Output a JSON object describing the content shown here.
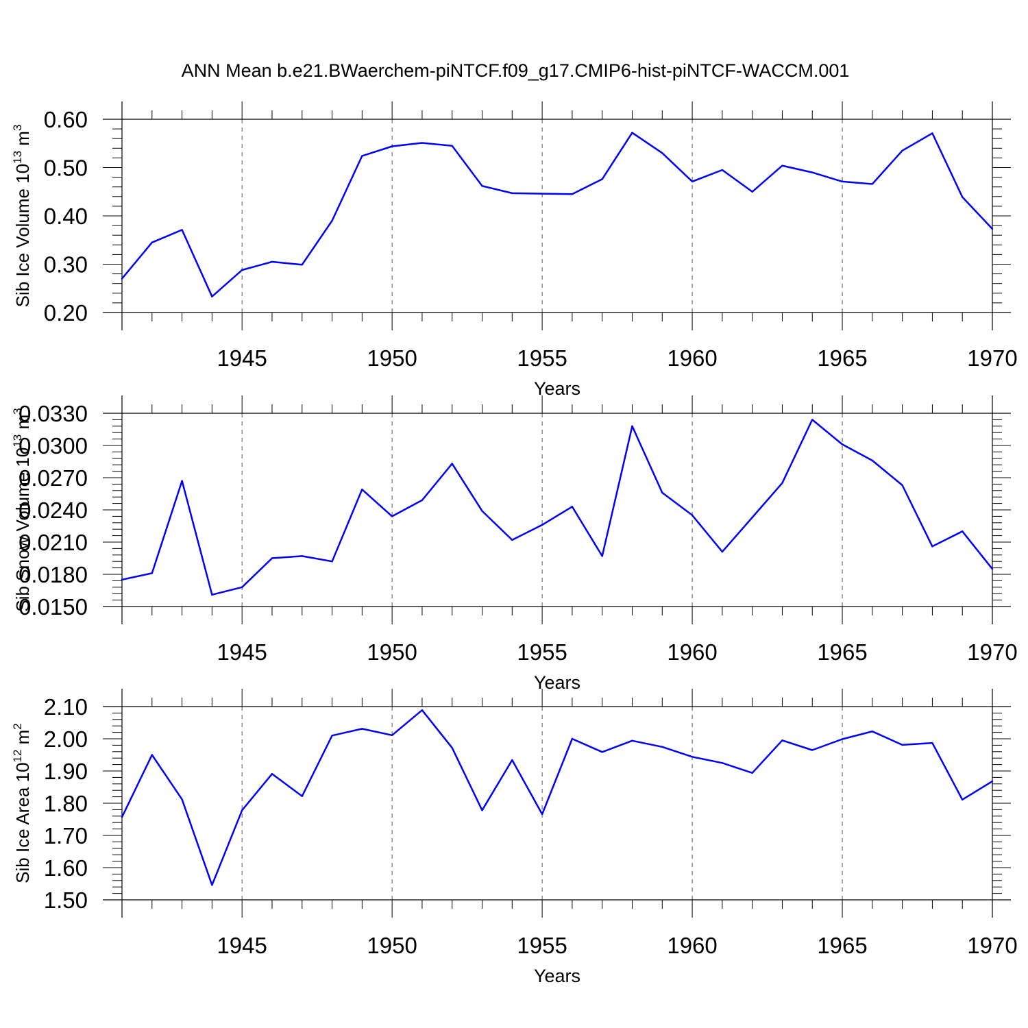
{
  "title": "ANN Mean b.e21.BWaerchem-piNTCF.f09_g17.CMIP6-hist-piNTCF-WACCM.001",
  "colors": {
    "line": "#0000ff",
    "axis": "#000000",
    "grid": "#555555",
    "background": "#ffffff"
  },
  "chart_data": [
    {
      "type": "line",
      "ylabel": "Sib Ice Volume 10^13 m^3",
      "ylabel_parts": {
        "base": "Sib Ice Volume 10",
        "exp1": "13",
        "mid": " m",
        "exp2": "3"
      },
      "xlabel": "Years",
      "xlim": [
        1941,
        1970
      ],
      "ylim": [
        0.2,
        0.6
      ],
      "yticks": [
        0.2,
        0.3,
        0.4,
        0.5,
        0.6
      ],
      "ytick_labels": [
        "0.20",
        "0.30",
        "0.40",
        "0.50",
        "0.60"
      ],
      "xticks": [
        1945,
        1950,
        1955,
        1960,
        1965,
        1970
      ],
      "xtick_labels": [
        "1945",
        "1950",
        "1955",
        "1960",
        "1965",
        "1970"
      ],
      "grid": "vertical dashed at major x ticks",
      "x": [
        1941,
        1942,
        1943,
        1944,
        1945,
        1946,
        1947,
        1948,
        1949,
        1950,
        1951,
        1952,
        1953,
        1954,
        1955,
        1956,
        1957,
        1958,
        1959,
        1960,
        1961,
        1962,
        1963,
        1964,
        1965,
        1966,
        1967,
        1968,
        1969,
        1970
      ],
      "values": [
        0.27,
        0.345,
        0.371,
        0.233,
        0.288,
        0.305,
        0.299,
        0.39,
        0.524,
        0.544,
        0.551,
        0.545,
        0.462,
        0.447,
        0.446,
        0.445,
        0.476,
        0.572,
        0.53,
        0.471,
        0.495,
        0.45,
        0.504,
        0.49,
        0.471,
        0.466,
        0.535,
        0.571,
        0.439,
        0.373
      ]
    },
    {
      "type": "line",
      "ylabel": "Sib Snow Volume 10^13 m^3",
      "ylabel_parts": {
        "base": "Sib Snow Volume 10",
        "exp1": "13",
        "mid": " m",
        "exp2": "3"
      },
      "xlabel": "Years",
      "xlim": [
        1941,
        1970
      ],
      "ylim": [
        0.015,
        0.033
      ],
      "yticks": [
        0.015,
        0.018,
        0.021,
        0.024,
        0.027,
        0.03,
        0.033
      ],
      "ytick_labels": [
        "0.0150",
        "0.0180",
        "0.0210",
        "0.0240",
        "0.0270",
        "0.0300",
        "0.0330"
      ],
      "xticks": [
        1945,
        1950,
        1955,
        1960,
        1965,
        1970
      ],
      "xtick_labels": [
        "1945",
        "1950",
        "1955",
        "1960",
        "1965",
        "1970"
      ],
      "grid": "vertical dashed at major x ticks",
      "x": [
        1941,
        1942,
        1943,
        1944,
        1945,
        1946,
        1947,
        1948,
        1949,
        1950,
        1951,
        1952,
        1953,
        1954,
        1955,
        1956,
        1957,
        1958,
        1959,
        1960,
        1961,
        1962,
        1963,
        1964,
        1965,
        1966,
        1967,
        1968,
        1969,
        1970
      ],
      "values": [
        0.0175,
        0.0181,
        0.0267,
        0.0161,
        0.0168,
        0.0195,
        0.0197,
        0.0192,
        0.0259,
        0.0234,
        0.0249,
        0.0283,
        0.0239,
        0.0212,
        0.0226,
        0.0243,
        0.0197,
        0.0318,
        0.0256,
        0.0235,
        0.0201,
        0.0233,
        0.0265,
        0.0324,
        0.0301,
        0.0286,
        0.0263,
        0.0206,
        0.022,
        0.0185
      ]
    },
    {
      "type": "line",
      "ylabel": "Sib Ice Area 10^12 m^2",
      "ylabel_parts": {
        "base": "Sib Ice Area 10",
        "exp1": "12",
        "mid": " m",
        "exp2": "2"
      },
      "xlabel": "Years",
      "xlim": [
        1941,
        1970
      ],
      "ylim": [
        1.5,
        2.1
      ],
      "yticks": [
        1.5,
        1.6,
        1.7,
        1.8,
        1.9,
        2.0,
        2.1
      ],
      "ytick_labels": [
        "1.50",
        "1.60",
        "1.70",
        "1.80",
        "1.90",
        "2.00",
        "2.10"
      ],
      "xticks": [
        1945,
        1950,
        1955,
        1960,
        1965,
        1970
      ],
      "xtick_labels": [
        "1945",
        "1950",
        "1955",
        "1960",
        "1965",
        "1970"
      ],
      "grid": "vertical dashed at major x ticks",
      "x": [
        1941,
        1942,
        1943,
        1944,
        1945,
        1946,
        1947,
        1948,
        1949,
        1950,
        1951,
        1952,
        1953,
        1954,
        1955,
        1956,
        1957,
        1958,
        1959,
        1960,
        1961,
        1962,
        1963,
        1964,
        1965,
        1966,
        1967,
        1968,
        1969,
        1970
      ],
      "values": [
        1.757,
        1.95,
        1.812,
        1.546,
        1.778,
        1.891,
        1.822,
        2.01,
        2.031,
        2.011,
        2.089,
        1.972,
        1.778,
        1.934,
        1.766,
        2.0,
        1.959,
        1.994,
        1.975,
        1.944,
        1.925,
        1.894,
        1.995,
        1.965,
        1.999,
        2.023,
        1.981,
        1.987,
        1.811,
        1.868
      ]
    }
  ]
}
